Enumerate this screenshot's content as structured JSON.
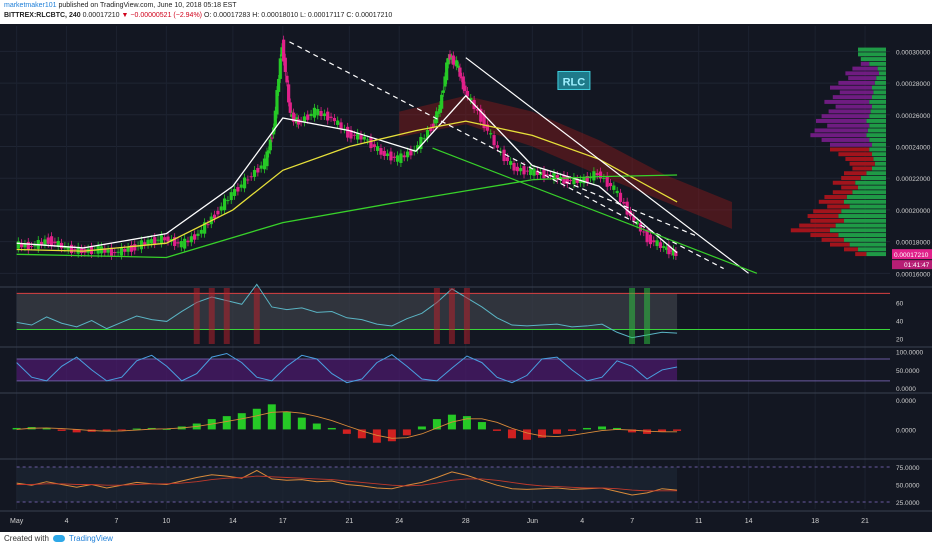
{
  "header": {
    "author": "marketmaker101",
    "published_text": "published on TradingView.com, June 10, 2018 05:18 EST",
    "symbol": "BITTREX:RLCBTC, 240",
    "last_price": "0.00017210",
    "change": "▼ −0.00000521 (−2.94%)",
    "open": "O: 0.00017283",
    "high": "H: 0.00018010",
    "low": "L: 0.00017117",
    "close": "C: 0.00017210"
  },
  "footer": {
    "created_with": "Created with",
    "brand": "TradingView"
  },
  "chart_data": {
    "type": "line",
    "title": "BITTREX:RLCBTC, 240",
    "annotation": "RLC",
    "price_axis": {
      "ticks": [
        "0.00030000",
        "0.00028000",
        "0.00026000",
        "0.00024000",
        "0.00022000",
        "0.00020000",
        "0.00018000",
        "0.00016000"
      ],
      "tick_values": [
        0.0003,
        0.00028,
        0.00026,
        0.00024,
        0.00022,
        0.0002,
        0.00018,
        0.00016
      ],
      "range": [
        0.000152,
        0.000316
      ],
      "last_price_label": "0.00017210",
      "countdown_label": "01:41:47"
    },
    "x_axis": {
      "ticks": [
        "May",
        "4",
        "7",
        "10",
        "14",
        "17",
        "21",
        "24",
        "28",
        "Jun",
        "4",
        "7",
        "11",
        "14",
        "18",
        "21"
      ],
      "tick_days": [
        1,
        4,
        7,
        10,
        14,
        17,
        21,
        24,
        28,
        32,
        35,
        38,
        42,
        45,
        49,
        52
      ]
    },
    "series": [
      {
        "name": "",
        "x": [
          1,
          2,
          3,
          4,
          5,
          6,
          7,
          8,
          9,
          10,
          11,
          12,
          13,
          14,
          15,
          16,
          16.5,
          17,
          17.5,
          18,
          19,
          20,
          21,
          22,
          23,
          24,
          25,
          26,
          26.5,
          27,
          27.5,
          28,
          29,
          30,
          31,
          32,
          33,
          34,
          35,
          36,
          37,
          38,
          39,
          40,
          40.7
        ],
        "values": [
          0.000178,
          0.000177,
          0.000181,
          0.000176,
          0.000174,
          0.000175,
          0.000173,
          0.000176,
          0.00018,
          0.000182,
          0.000178,
          0.000185,
          0.000197,
          0.00021,
          0.00022,
          0.00023,
          0.000252,
          0.000305,
          0.00026,
          0.000255,
          0.000262,
          0.000258,
          0.000248,
          0.000245,
          0.000236,
          0.000232,
          0.000238,
          0.000252,
          0.000265,
          0.000297,
          0.000292,
          0.000275,
          0.000258,
          0.000238,
          0.000226,
          0.000224,
          0.000222,
          0.000219,
          0.000218,
          0.000223,
          0.000213,
          0.000196,
          0.000182,
          0.000176,
          0.0001721
        ]
      },
      {
        "name": "",
        "x": [
          1,
          5,
          10,
          14,
          17,
          21,
          25,
          28,
          32,
          36,
          40.7
        ],
        "values": [
          0.000179,
          0.000176,
          0.000185,
          0.000215,
          0.000258,
          0.00025,
          0.000237,
          0.000272,
          0.000228,
          0.000215,
          0.000173
        ]
      },
      {
        "name": "",
        "x": [
          1,
          5,
          10,
          14,
          17,
          21,
          25,
          28,
          32,
          36,
          40.7
        ],
        "values": [
          0.000175,
          0.000174,
          0.000179,
          0.0002,
          0.000225,
          0.00024,
          0.00025,
          0.000256,
          0.000247,
          0.000232,
          0.000205
        ]
      },
      {
        "name": "",
        "x": [
          1,
          10,
          17,
          24,
          28,
          32,
          36,
          40.7
        ],
        "values": [
          0.000172,
          0.00017,
          0.000192,
          0.000205,
          0.000212,
          0.000219,
          0.000221,
          0.000222
        ]
      }
    ],
    "trendlines": [
      {
        "name": "",
        "x": [
          17.4,
          43.5
        ],
        "values": [
          0.000306,
          0.000163
        ]
      },
      {
        "name": "",
        "x": [
          28,
          45
        ],
        "values": [
          0.000296,
          0.00016
        ]
      },
      {
        "name": "",
        "x": [
          26,
          45.5
        ],
        "values": [
          0.000239,
          0.00016
        ]
      },
      {
        "name": "",
        "x": [
          33,
          42
        ],
        "values": [
          0.000222,
          0.000183
        ]
      }
    ],
    "volume_profile": [
      {
        "p": 0.000301,
        "g": 1,
        "r": 0
      },
      {
        "p": 0.000298,
        "g": 1,
        "r": 0
      },
      {
        "p": 0.000295,
        "g": 0.9,
        "r": 0
      },
      {
        "p": 0.000292,
        "g": 0.6,
        "r": 0.3
      },
      {
        "p": 0.000289,
        "g": 0.3,
        "r": 0.9
      },
      {
        "p": 0.000286,
        "g": 0.25,
        "r": 1.2
      },
      {
        "p": 0.000283,
        "g": 0.35,
        "r": 1.0
      },
      {
        "p": 0.00028,
        "g": 0.4,
        "r": 1.3
      },
      {
        "p": 0.000277,
        "g": 0.5,
        "r": 1.5
      },
      {
        "p": 0.000274,
        "g": 0.45,
        "r": 1.2
      },
      {
        "p": 0.000271,
        "g": 0.5,
        "r": 1.4
      },
      {
        "p": 0.000268,
        "g": 0.6,
        "r": 1.6
      },
      {
        "p": 0.000265,
        "g": 0.5,
        "r": 1.3
      },
      {
        "p": 0.000262,
        "g": 0.55,
        "r": 1.5
      },
      {
        "p": 0.000259,
        "g": 0.6,
        "r": 1.7
      },
      {
        "p": 0.000256,
        "g": 0.7,
        "r": 1.8
      },
      {
        "p": 0.000253,
        "g": 0.6,
        "r": 1.5
      },
      {
        "p": 0.00025,
        "g": 0.65,
        "r": 1.9
      },
      {
        "p": 0.000247,
        "g": 0.7,
        "r": 2.0
      },
      {
        "p": 0.000244,
        "g": 0.6,
        "r": 1.7
      },
      {
        "p": 0.000241,
        "g": 0.5,
        "r": 1.5
      },
      {
        "p": 0.000238,
        "g": 0.6,
        "r": 1.4
      },
      {
        "p": 0.000235,
        "g": 0.5,
        "r": 1.2
      },
      {
        "p": 0.000232,
        "g": 0.45,
        "r": 1.0
      },
      {
        "p": 0.000229,
        "g": 0.4,
        "r": 0.9
      },
      {
        "p": 0.000226,
        "g": 0.5,
        "r": 0.7
      },
      {
        "p": 0.000223,
        "g": 0.7,
        "r": 0.8
      },
      {
        "p": 0.00022,
        "g": 0.9,
        "r": 0.7
      },
      {
        "p": 0.000217,
        "g": 1.1,
        "r": 0.8
      },
      {
        "p": 0.000214,
        "g": 1.0,
        "r": 0.6
      },
      {
        "p": 0.000211,
        "g": 1.2,
        "r": 0.7
      },
      {
        "p": 0.000208,
        "g": 1.4,
        "r": 0.8
      },
      {
        "p": 0.000205,
        "g": 1.5,
        "r": 0.9
      },
      {
        "p": 0.000202,
        "g": 1.3,
        "r": 0.8
      },
      {
        "p": 0.000199,
        "g": 1.6,
        "r": 1.0
      },
      {
        "p": 0.000196,
        "g": 1.7,
        "r": 1.1
      },
      {
        "p": 0.000193,
        "g": 1.5,
        "r": 1.2
      },
      {
        "p": 0.00019,
        "g": 1.8,
        "r": 1.3
      },
      {
        "p": 0.000187,
        "g": 2.0,
        "r": 1.4
      },
      {
        "p": 0.000184,
        "g": 1.7,
        "r": 1.0
      },
      {
        "p": 0.000181,
        "g": 1.5,
        "r": 0.8
      },
      {
        "p": 0.000178,
        "g": 1.3,
        "r": 0.7
      },
      {
        "p": 0.000175,
        "g": 1.0,
        "r": 0.5
      },
      {
        "p": 0.000172,
        "g": 0.7,
        "r": 0.4
      }
    ],
    "indicators": [
      {
        "type": "rsi",
        "ticks": [
          "60",
          "40",
          "20"
        ],
        "tick_values": [
          60,
          40,
          20
        ],
        "range": [
          14,
          76
        ],
        "band": [
          30,
          70
        ],
        "values": [
          38,
          35,
          44,
          37,
          33,
          40,
          31,
          38,
          45,
          41,
          39,
          50,
          60,
          66,
          62,
          58,
          80,
          55,
          52,
          54,
          49,
          50,
          43,
          41,
          36,
          34,
          42,
          48,
          60,
          75,
          65,
          55,
          43,
          35,
          34,
          35,
          36,
          33,
          34,
          36,
          27,
          21,
          24,
          27,
          26
        ]
      },
      {
        "type": "stoch",
        "ticks": [
          "100.0000",
          "50.0000",
          "0.0000"
        ],
        "tick_values": [
          100,
          50,
          0
        ],
        "range": [
          -5,
          110
        ],
        "band": [
          20,
          80
        ],
        "values": [
          70,
          30,
          20,
          60,
          85,
          50,
          20,
          30,
          75,
          90,
          60,
          20,
          40,
          85,
          95,
          70,
          30,
          20,
          60,
          90,
          80,
          40,
          15,
          25,
          70,
          92,
          60,
          25,
          20,
          55,
          88,
          70,
          30,
          15,
          35,
          80,
          85,
          50,
          20,
          30,
          75,
          60,
          25,
          50,
          58
        ]
      },
      {
        "type": "macd",
        "ticks": [
          "0.0000",
          "0.0000"
        ],
        "tick_values": [
          1,
          0
        ],
        "range": [
          -0.9,
          1.2
        ],
        "values": [
          0.05,
          0.08,
          0.04,
          -0.05,
          -0.1,
          -0.08,
          -0.05,
          -0.02,
          0.03,
          0.05,
          0.02,
          0.1,
          0.2,
          0.35,
          0.45,
          0.55,
          0.7,
          0.85,
          0.6,
          0.4,
          0.2,
          0.05,
          -0.15,
          -0.3,
          -0.45,
          -0.4,
          -0.2,
          0.1,
          0.35,
          0.5,
          0.45,
          0.25,
          -0.05,
          -0.3,
          -0.35,
          -0.28,
          -0.15,
          -0.05,
          0.05,
          0.1,
          0.05,
          -0.1,
          -0.15,
          -0.08,
          -0.05
        ],
        "signal": [
          0.0,
          0.04,
          0.05,
          0.03,
          0.0,
          -0.04,
          -0.06,
          -0.05,
          -0.02,
          0.01,
          0.02,
          0.05,
          0.1,
          0.18,
          0.27,
          0.36,
          0.46,
          0.58,
          0.6,
          0.55,
          0.44,
          0.3,
          0.12,
          -0.05,
          -0.2,
          -0.3,
          -0.28,
          -0.15,
          0.05,
          0.25,
          0.36,
          0.36,
          0.24,
          0.04,
          -0.12,
          -0.22,
          -0.24,
          -0.2,
          -0.12,
          -0.04,
          0.0,
          -0.02,
          -0.06,
          -0.08,
          -0.08
        ]
      },
      {
        "type": "oscillator",
        "ticks": [
          "75.0000",
          "50.0000",
          "25.0000"
        ],
        "tick_values": [
          75,
          50,
          25
        ],
        "range": [
          15,
          85
        ],
        "band": [
          25,
          75
        ],
        "values": [
          52,
          49,
          54,
          50,
          46,
          50,
          45,
          49,
          53,
          51,
          50,
          55,
          60,
          64,
          62,
          59,
          70,
          58,
          56,
          57,
          54,
          55,
          50,
          48,
          45,
          44,
          49,
          53,
          60,
          68,
          63,
          56,
          49,
          44,
          43,
          44,
          45,
          43,
          44,
          45,
          40,
          35,
          38,
          44,
          42
        ],
        "signal": [
          50,
          50,
          51,
          51,
          50,
          50,
          49,
          49,
          50,
          51,
          51,
          52,
          54,
          57,
          59,
          60,
          62,
          61,
          60,
          59,
          58,
          57,
          55,
          53,
          51,
          49,
          48,
          49,
          52,
          56,
          58,
          58,
          56,
          53,
          50,
          48,
          47,
          46,
          45,
          45,
          44,
          42,
          41,
          41,
          41
        ]
      }
    ],
    "colors": {
      "background": "#131722",
      "up": "#26c926",
      "down": "#e0218a",
      "price_line": "#ffffff",
      "ma_fast": "#ffffff",
      "ma_mid": "#e6e03a",
      "ma_slow": "#38d12a",
      "trend": "#ffffff",
      "cloud": "#8b1a1a",
      "annotation_bg": "#1f7a8a",
      "annotation_text": "#9ff0ff",
      "rsi_line": "#5ab4c4",
      "stoch_bg": "#4b1a6b",
      "axis_text": "#d0d0d0",
      "last_price_bg": "#e0218a"
    }
  }
}
